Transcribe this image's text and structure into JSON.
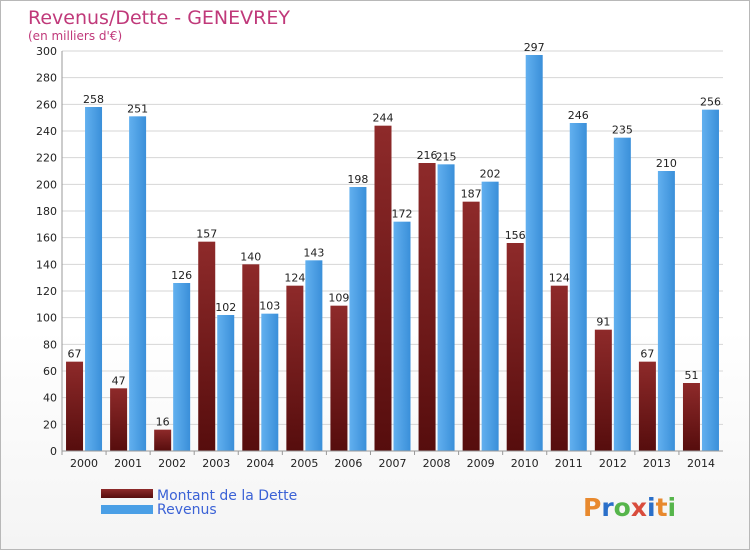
{
  "chart_data": {
    "type": "bar",
    "title": "Revenus/Dette - GENEVREY",
    "subtitle": "(en milliers d'€)",
    "categories": [
      "2000",
      "2001",
      "2002",
      "2003",
      "2004",
      "2005",
      "2006",
      "2007",
      "2008",
      "2009",
      "2010",
      "2011",
      "2012",
      "2013",
      "2014"
    ],
    "series": [
      {
        "name": "Montant de la Dette",
        "color": "#7a1a1a",
        "values": [
          67,
          47,
          16,
          157,
          140,
          124,
          109,
          244,
          216,
          187,
          156,
          124,
          91,
          67,
          51
        ]
      },
      {
        "name": "Revenus",
        "color": "#4a9fe6",
        "values": [
          258,
          251,
          126,
          102,
          103,
          143,
          198,
          172,
          215,
          202,
          297,
          246,
          235,
          210,
          256
        ]
      }
    ],
    "ylim": [
      0,
      300
    ],
    "yticks": [
      0,
      20,
      40,
      60,
      80,
      100,
      120,
      140,
      160,
      180,
      200,
      220,
      240,
      260,
      280,
      300
    ],
    "grid": true,
    "legend": "bottom-left"
  },
  "logo": {
    "text": "Proxiti"
  }
}
